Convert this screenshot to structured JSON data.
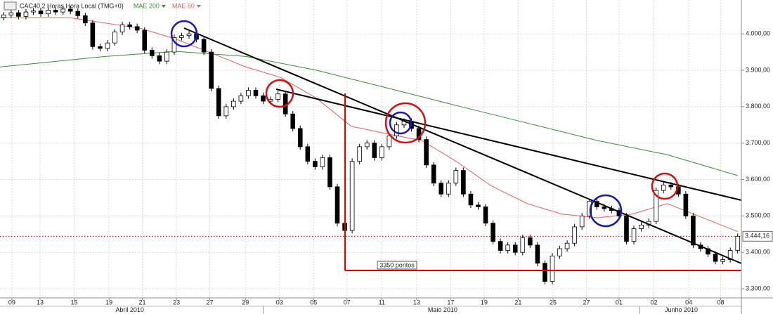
{
  "chart_data": {
    "type": "candlestick",
    "title": "CAC40,2 Horas,Hora Local (TMG+0)",
    "x": [
      0,
      1,
      2,
      3,
      4,
      5,
      6,
      7,
      8,
      9,
      10,
      11,
      12,
      13,
      14,
      15,
      16,
      17,
      18,
      19,
      20,
      21,
      22,
      23,
      24,
      25,
      26,
      27,
      28,
      29,
      30,
      31,
      32,
      33,
      34,
      35,
      36,
      37,
      38,
      39,
      40,
      41,
      42,
      43,
      44,
      45,
      46,
      47,
      48,
      49,
      50,
      51,
      52,
      53,
      54,
      55,
      56,
      57,
      58,
      59,
      60,
      61,
      62,
      63,
      64,
      65,
      66,
      67,
      68,
      69,
      70,
      71,
      72,
      73,
      74,
      75,
      76,
      77,
      78,
      79,
      80,
      81,
      82,
      83,
      84,
      85,
      86,
      87,
      88,
      89,
      90,
      91,
      92,
      93,
      94,
      95,
      96,
      97,
      98,
      99
    ],
    "open": [
      4045,
      4052,
      4058,
      4048,
      4060,
      4063,
      4055,
      4065,
      4060,
      4068,
      4062,
      4050,
      4030,
      3965,
      3960,
      3975,
      4005,
      4025,
      4020,
      4010,
      3955,
      3940,
      3925,
      3950,
      3990,
      3995,
      4000,
      3985,
      3950,
      3850,
      3775,
      3800,
      3815,
      3830,
      3845,
      3830,
      3815,
      3820,
      3835,
      3780,
      3740,
      3690,
      3650,
      3635,
      3660,
      3580,
      3480,
      3460,
      3650,
      3690,
      3700,
      3660,
      3690,
      3720,
      3750,
      3760,
      3740,
      3710,
      3640,
      3590,
      3560,
      3590,
      3625,
      3560,
      3530,
      3525,
      3480,
      3430,
      3405,
      3420,
      3400,
      3440,
      3420,
      3370,
      3320,
      3390,
      3410,
      3425,
      3470,
      3500,
      3540,
      3525,
      3520,
      3515,
      3500,
      3430,
      3465,
      3475,
      3485,
      3570,
      3585,
      3580,
      3560,
      3500,
      3420,
      3410,
      3395,
      3375,
      3380,
      3405
    ],
    "high": [
      4060,
      4066,
      4066,
      4068,
      4071,
      4071,
      4073,
      4073,
      4076,
      4076,
      4070,
      4058,
      4038,
      3973,
      3983,
      4013,
      4033,
      4033,
      4028,
      4018,
      3963,
      3948,
      3958,
      3998,
      4003,
      4008,
      4008,
      3993,
      3958,
      3858,
      3808,
      3823,
      3838,
      3853,
      3853,
      3838,
      3828,
      3843,
      3843,
      3788,
      3748,
      3698,
      3658,
      3668,
      3668,
      3588,
      3488,
      3658,
      3698,
      3708,
      3708,
      3698,
      3728,
      3758,
      3768,
      3768,
      3748,
      3718,
      3648,
      3598,
      3598,
      3633,
      3633,
      3568,
      3538,
      3533,
      3488,
      3438,
      3428,
      3428,
      3448,
      3448,
      3428,
      3378,
      3398,
      3418,
      3433,
      3478,
      3508,
      3548,
      3548,
      3533,
      3528,
      3523,
      3508,
      3473,
      3483,
      3493,
      3578,
      3593,
      3593,
      3588,
      3568,
      3508,
      3428,
      3418,
      3403,
      3388,
      3413,
      3452
    ],
    "low": [
      4037,
      4044,
      4040,
      4040,
      4052,
      4047,
      4047,
      4052,
      4052,
      4054,
      4042,
      4022,
      3957,
      3952,
      3952,
      3967,
      3997,
      4012,
      4002,
      3947,
      3932,
      3917,
      3917,
      3942,
      3982,
      3987,
      3977,
      3942,
      3842,
      3767,
      3767,
      3792,
      3807,
      3822,
      3822,
      3807,
      3807,
      3812,
      3772,
      3732,
      3682,
      3642,
      3627,
      3627,
      3572,
      3472,
      3452,
      3452,
      3642,
      3682,
      3652,
      3652,
      3682,
      3712,
      3742,
      3732,
      3702,
      3632,
      3582,
      3552,
      3552,
      3582,
      3552,
      3522,
      3517,
      3472,
      3422,
      3397,
      3397,
      3392,
      3392,
      3412,
      3362,
      3312,
      3312,
      3382,
      3402,
      3417,
      3462,
      3492,
      3517,
      3512,
      3507,
      3492,
      3422,
      3422,
      3457,
      3467,
      3477,
      3562,
      3572,
      3552,
      3492,
      3412,
      3402,
      3387,
      3367,
      3367,
      3372,
      3397
    ],
    "close": [
      4052,
      4058,
      4048,
      4060,
      4063,
      4055,
      4065,
      4060,
      4068,
      4062,
      4050,
      4030,
      3965,
      3960,
      3975,
      4005,
      4025,
      4020,
      4010,
      3955,
      3940,
      3925,
      3950,
      3990,
      3995,
      4000,
      3985,
      3950,
      3850,
      3775,
      3800,
      3815,
      3830,
      3845,
      3830,
      3815,
      3820,
      3835,
      3780,
      3740,
      3690,
      3650,
      3635,
      3660,
      3580,
      3480,
      3460,
      3650,
      3690,
      3700,
      3660,
      3690,
      3720,
      3750,
      3760,
      3740,
      3710,
      3640,
      3590,
      3560,
      3590,
      3625,
      3560,
      3530,
      3525,
      3480,
      3430,
      3405,
      3420,
      3400,
      3440,
      3420,
      3370,
      3320,
      3390,
      3410,
      3425,
      3470,
      3500,
      3540,
      3525,
      3520,
      3515,
      3500,
      3430,
      3465,
      3475,
      3485,
      3570,
      3585,
      3580,
      3560,
      3500,
      3420,
      3410,
      3395,
      3375,
      3380,
      3405,
      3444.16
    ],
    "up_color": "#ffffff",
    "down_color": "#000000",
    "outline_color": "#000000",
    "series": [
      {
        "name": "MAE 200",
        "color": "#3a8a3a",
        "x": [
          -0.5,
          13.7,
          23.2,
          32.7,
          42.2,
          51.6,
          61.1,
          70.6,
          80.1,
          89.5,
          99
        ],
        "values": [
          3909,
          3938,
          3952,
          3938,
          3900,
          3852,
          3803,
          3755,
          3707,
          3668,
          3611
        ]
      },
      {
        "name": "MAE 60",
        "color": "#e06060",
        "x": [
          -0.5,
          9,
          18.5,
          23.2,
          27.9,
          32.7,
          37.4,
          42.2,
          46.9,
          51.6,
          56.4,
          61.1,
          65.8,
          70.6,
          75.3,
          80.1,
          84.8,
          89.5,
          94.3,
          99
        ],
        "values": [
          4044,
          4044,
          4015,
          3986,
          3948,
          3909,
          3880,
          3823,
          3746,
          3726,
          3707,
          3649,
          3582,
          3534,
          3505,
          3495,
          3505,
          3534,
          3495,
          3457
        ]
      }
    ],
    "last_price": {
      "value": 3444.16,
      "label": "3.444,16",
      "color": "#c00000"
    },
    "annotation": "3350 pontos",
    "xlim": [
      -0.5,
      99.5
    ],
    "ylim": [
      3275,
      4093
    ],
    "yticks": [
      {
        "value": 3300,
        "label": "3.300,00"
      },
      {
        "value": 3400,
        "label": "3.400,00"
      },
      {
        "value": 3500,
        "label": "3.500,00"
      },
      {
        "value": 3600,
        "label": "3.600,00"
      },
      {
        "value": 3700,
        "label": "3.700,00"
      },
      {
        "value": 3800,
        "label": "3.800,00"
      },
      {
        "value": 3900,
        "label": "3.900,00"
      },
      {
        "value": 4000,
        "label": "4.000,00"
      }
    ],
    "xticks": [
      {
        "value": 1.1,
        "label": "09"
      },
      {
        "value": 4.9,
        "label": "13"
      },
      {
        "value": 9.5,
        "label": "15"
      },
      {
        "value": 14.2,
        "label": "19"
      },
      {
        "value": 18.7,
        "label": "21"
      },
      {
        "value": 23.3,
        "label": "23"
      },
      {
        "value": 27.8,
        "label": "27"
      },
      {
        "value": 32.6,
        "label": "29"
      },
      {
        "value": 37.2,
        "label": "03"
      },
      {
        "value": 41.8,
        "label": "05"
      },
      {
        "value": 46.3,
        "label": "07"
      },
      {
        "value": 51,
        "label": "11"
      },
      {
        "value": 55.7,
        "label": "13"
      },
      {
        "value": 60.3,
        "label": "17"
      },
      {
        "value": 64.8,
        "label": "19"
      },
      {
        "value": 69.4,
        "label": "21"
      },
      {
        "value": 74.1,
        "label": "25"
      },
      {
        "value": 78.6,
        "label": "27"
      },
      {
        "value": 83,
        "label": "01"
      },
      {
        "value": 87.7,
        "label": "02"
      },
      {
        "value": 92.4,
        "label": "04"
      },
      {
        "value": 96.7,
        "label": "08"
      }
    ],
    "month_ticks": [
      {
        "value": 17,
        "label": "Abril 2010"
      },
      {
        "value": 59.2,
        "label": "Maio 2010"
      },
      {
        "value": 91.4,
        "label": "Junho 2010"
      }
    ],
    "month_separators": [
      35,
      85.8
    ],
    "grid": true
  }
}
